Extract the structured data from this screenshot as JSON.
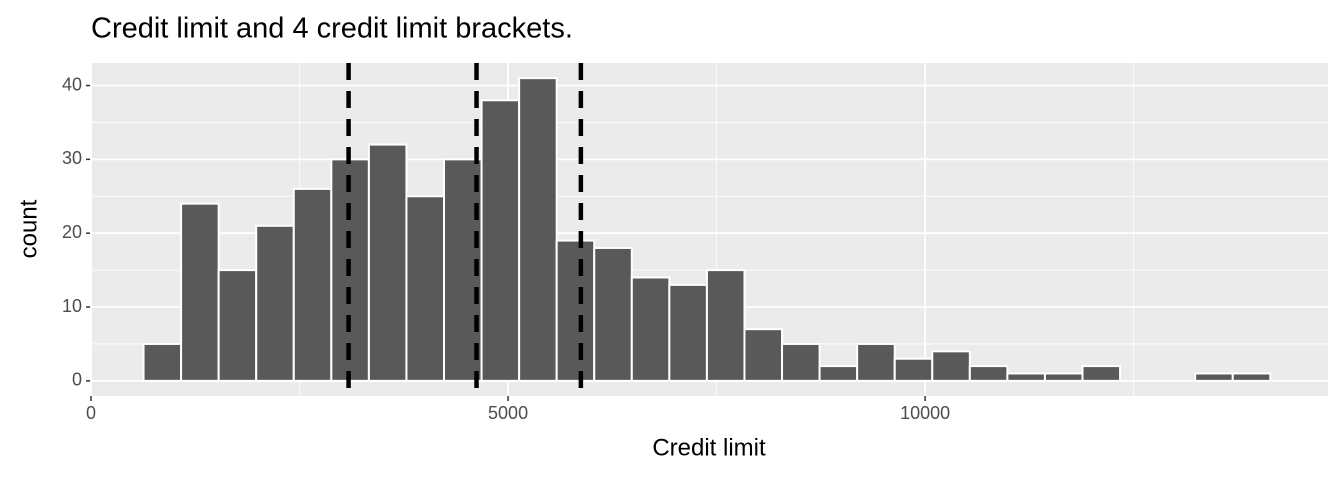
{
  "chart_data": {
    "type": "histogram",
    "title": "Credit limit and 4 credit limit brackets.",
    "x_label": "Credit limit",
    "y_label": "count",
    "bins": [
      629.86,
      1080.14,
      1530.42,
      1980.7,
      2430.98,
      2881.26,
      3331.54,
      3781.82,
      4232.1,
      4682.38,
      5132.66,
      5582.94,
      6033.22,
      6483.5,
      6933.78,
      7384.06,
      7834.34,
      8284.62,
      8734.9,
      9185.18,
      9635.46,
      10085.74,
      10536.02,
      10986.3,
      11436.58,
      11886.86,
      12337.14,
      12787.42,
      13237.7,
      13687.98,
      14138.26
    ],
    "values": [
      5,
      24,
      15,
      21,
      26,
      30,
      32,
      25,
      30,
      38,
      41,
      19,
      18,
      14,
      13,
      15,
      7,
      5,
      2,
      5,
      3,
      4,
      2,
      1,
      1,
      2,
      0,
      0,
      1,
      1
    ],
    "color": "#595959",
    "vlines": [
      3088,
      4622,
      5873
    ],
    "xlim": [
      0,
      14830
    ],
    "xticks": [
      0,
      5000,
      10000
    ],
    "x_minor_ticks": [
      2500,
      7500,
      12500
    ],
    "ylim": [
      -2.05,
      43.05
    ],
    "yticks": [
      0,
      10,
      20,
      30,
      40
    ],
    "y_minor_ticks": [
      5,
      15,
      25,
      35
    ],
    "grid": true
  }
}
